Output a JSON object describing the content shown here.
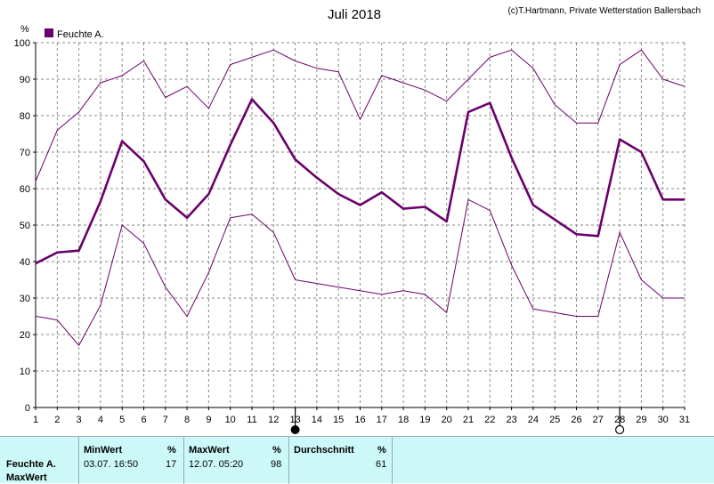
{
  "header": {
    "title": "Juli 2018",
    "credit": "(c)T.Hartmann, Private Wetterstation Ballersbach",
    "unit_label": "%"
  },
  "colors": {
    "series": "#6b006b",
    "grid": "#8a8a8a",
    "panel_bg": "#ccf9f7"
  },
  "chart_data": {
    "type": "line",
    "title": "Juli 2018",
    "xlabel": "",
    "ylabel": "%",
    "xlim": [
      1,
      31
    ],
    "ylim": [
      0,
      100
    ],
    "x_ticks": [
      1,
      2,
      3,
      4,
      5,
      6,
      7,
      8,
      9,
      10,
      11,
      12,
      13,
      14,
      15,
      16,
      17,
      18,
      19,
      20,
      21,
      22,
      23,
      24,
      25,
      26,
      27,
      28,
      29,
      30,
      31
    ],
    "y_ticks": [
      0,
      10,
      20,
      30,
      40,
      50,
      60,
      70,
      80,
      90,
      100
    ],
    "grid": true,
    "legend": {
      "position": "top-left",
      "entries": [
        "Feuchte A."
      ]
    },
    "x": [
      1,
      2,
      3,
      4,
      5,
      6,
      7,
      8,
      9,
      10,
      11,
      12,
      13,
      14,
      15,
      16,
      17,
      18,
      19,
      20,
      21,
      22,
      23,
      24,
      25,
      26,
      27,
      28,
      29,
      30,
      31
    ],
    "series": [
      {
        "name": "Feuchte A.",
        "role": "average",
        "values": [
          39.5,
          42.5,
          43,
          56.5,
          73,
          67.5,
          57,
          52,
          58.5,
          72,
          84.5,
          78,
          68,
          63,
          58.5,
          55.5,
          59,
          54.5,
          55,
          51,
          81,
          83.5,
          68.5,
          55.5,
          51.5,
          47.5,
          47,
          73.5,
          70,
          57,
          57
        ]
      },
      {
        "role": "max",
        "values": [
          62,
          76,
          81,
          89,
          91,
          95,
          85,
          88,
          82,
          94,
          96,
          98,
          95,
          93,
          92,
          79,
          91,
          89,
          87,
          84,
          90,
          96,
          98,
          93,
          83,
          78,
          78,
          94,
          98,
          90,
          88
        ]
      },
      {
        "role": "min",
        "values": [
          25,
          24,
          17,
          28,
          50,
          45,
          33,
          25,
          37,
          52,
          53,
          48,
          35,
          34,
          33,
          32,
          31,
          32,
          31,
          26,
          57,
          54,
          39,
          27,
          26,
          25,
          25,
          48,
          35,
          30,
          30
        ]
      }
    ],
    "moon_markers": [
      {
        "day": 13,
        "phase": "new"
      },
      {
        "day": 28,
        "phase": "full"
      }
    ]
  },
  "stats": {
    "min_header": "MinWert",
    "max_header": "MaxWert",
    "avg_header": "Durchschnitt",
    "unit": "%",
    "row_label": "Feuchte A.",
    "row_label2": "MaxWert",
    "min_datetime": "03.07.  16:50",
    "min_value": "17",
    "max_datetime": "12.07.  05:20",
    "max_value": "98",
    "avg_value": "61"
  }
}
